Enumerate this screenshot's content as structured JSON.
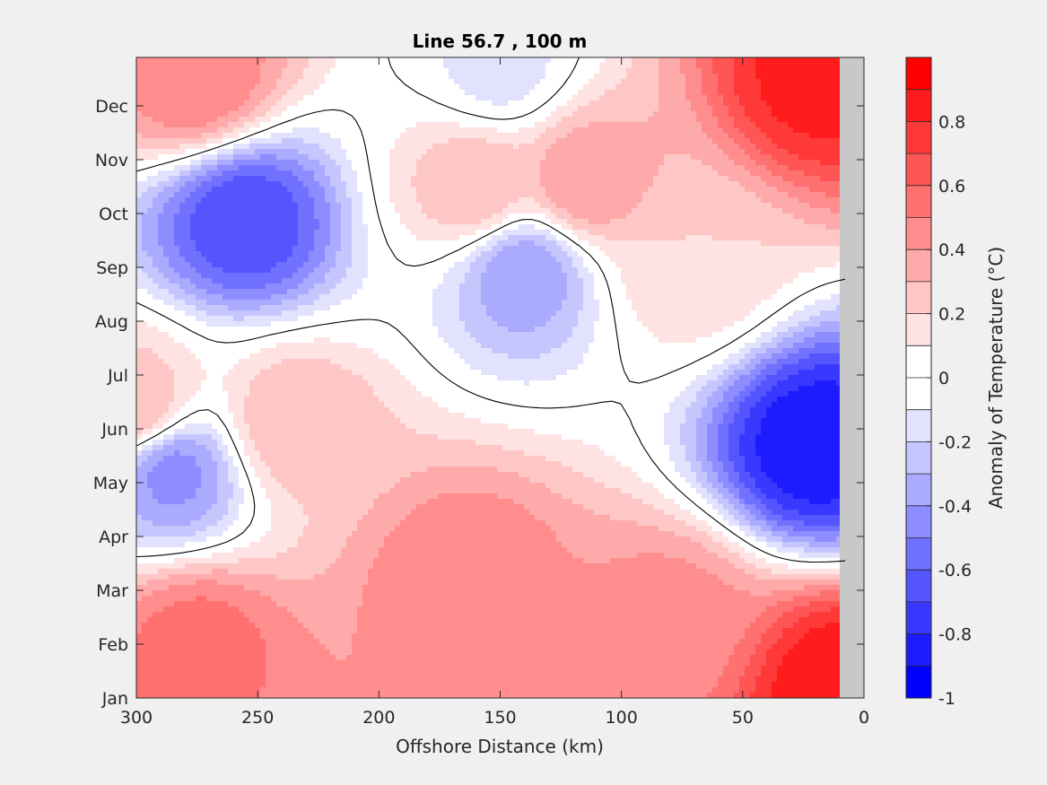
{
  "chart_data": {
    "type": "heatmap",
    "subtype": "filled-contour",
    "title": "Line 56.7 , 100 m",
    "xlabel": "Offshore Distance (km)",
    "ylabel": "",
    "xlim": [
      300,
      0
    ],
    "x_reversed": true,
    "x_ticks": [
      "300",
      "250",
      "200",
      "150",
      "100",
      "50",
      "0"
    ],
    "x_tick_values": [
      300,
      250,
      200,
      150,
      100,
      50,
      0
    ],
    "y_ticks": [
      "Jan",
      "Feb",
      "Mar",
      "Apr",
      "May",
      "Jun",
      "Jul",
      "Aug",
      "Sep",
      "Oct",
      "Nov",
      "Dec"
    ],
    "y_tick_values": [
      0,
      1,
      2,
      3,
      4,
      5,
      6,
      7,
      8,
      9,
      10,
      11
    ],
    "ylim": [
      0,
      11.9
    ],
    "data_extent_km": [
      300,
      10
    ],
    "no_data_color": "#c8c8c8",
    "zero_contour_color": "#000000",
    "colorbar": {
      "label": "Anomaly of Temperature (°C)",
      "range": [
        -1,
        1
      ],
      "ticks": [
        "-1",
        "-0.8",
        "-0.6",
        "-0.4",
        "-0.2",
        "0",
        "0.2",
        "0.4",
        "0.6",
        "0.8"
      ],
      "tick_values": [
        -1,
        -0.8,
        -0.6,
        -0.4,
        -0.2,
        0,
        0.2,
        0.4,
        0.6,
        0.8
      ],
      "colors": [
        "#0000ff",
        "#1c1cff",
        "#3838ff",
        "#5555ff",
        "#7171ff",
        "#8d8dff",
        "#aaaaff",
        "#c6c6ff",
        "#e2e2ff",
        "#ffffff",
        "#ffffff",
        "#ffe2e2",
        "#ffc6c6",
        "#ffaaaa",
        "#ff8d8d",
        "#ff7171",
        "#ff5555",
        "#ff3838",
        "#ff1c1c",
        "#ff0000"
      ]
    },
    "field_features": [
      {
        "x": 20,
        "y": 11.5,
        "value": 0.85
      },
      {
        "x": 10,
        "y": 0.2,
        "value": 0.9
      },
      {
        "x": 255,
        "y": 8.85,
        "value": -0.7
      },
      {
        "x": 20,
        "y": 4.7,
        "value": -0.9
      },
      {
        "x": 275,
        "y": 1.0,
        "value": 0.55
      },
      {
        "x": 115,
        "y": 9.6,
        "value": 0.4
      },
      {
        "x": 165,
        "y": 2.2,
        "value": 0.5
      },
      {
        "x": 80,
        "y": 1.4,
        "value": 0.45
      },
      {
        "x": 275,
        "y": 11.5,
        "value": 0.5
      },
      {
        "x": 235,
        "y": 5.1,
        "value": 0.3
      },
      {
        "x": 160,
        "y": 9.5,
        "value": 0.3
      },
      {
        "x": 300,
        "y": 5.4,
        "value": 0.3
      },
      {
        "x": 140,
        "y": 7.9,
        "value": -0.4
      },
      {
        "x": 150,
        "y": 11.7,
        "value": -0.15
      },
      {
        "x": 70,
        "y": 8.1,
        "value": 0.2
      },
      {
        "x": 285,
        "y": 4.2,
        "value": -0.45
      }
    ]
  }
}
